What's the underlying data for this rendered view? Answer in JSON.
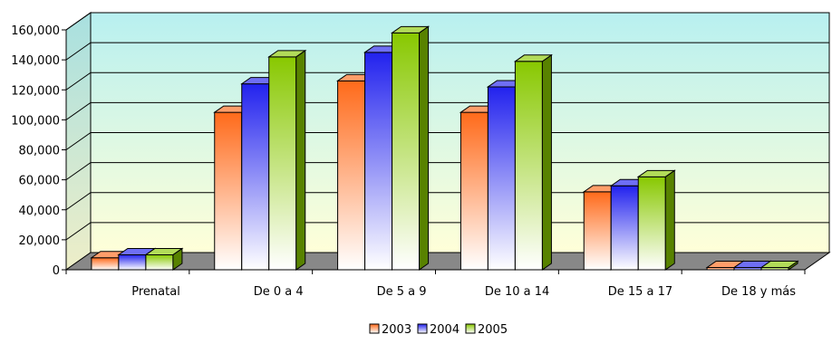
{
  "chart_data": {
    "type": "bar",
    "style": "3d-clustered-column",
    "title": "",
    "xlabel": "",
    "ylabel": "",
    "categories": [
      "Prenatal",
      "De 0 a 4",
      "De 5 a 9",
      "De 10 a 14",
      "De 15 a 17",
      "De 18 y más"
    ],
    "series": [
      {
        "name": "2003",
        "color": "#ff6a1a",
        "values": [
          8000,
          105000,
          126000,
          105000,
          52000,
          1500
        ]
      },
      {
        "name": "2004",
        "color": "#2222ee",
        "values": [
          10000,
          124000,
          145000,
          122000,
          56000,
          1500
        ]
      },
      {
        "name": "2005",
        "color": "#88c800",
        "values": [
          10000,
          142000,
          158000,
          139000,
          62000,
          1500
        ]
      }
    ],
    "ylim": [
      0,
      160000
    ],
    "yticks": [
      0,
      20000,
      40000,
      60000,
      80000,
      100000,
      120000,
      140000,
      160000
    ],
    "ytick_labels": [
      "0",
      "20,000",
      "40,000",
      "60,000",
      "80,000",
      "100,000",
      "120,000",
      "140,000",
      "160,000"
    ],
    "grid": true,
    "legend_position": "bottom",
    "wall_gradient": [
      "#b8f0f0",
      "#ffffd8"
    ],
    "floor_color": "#888888"
  }
}
